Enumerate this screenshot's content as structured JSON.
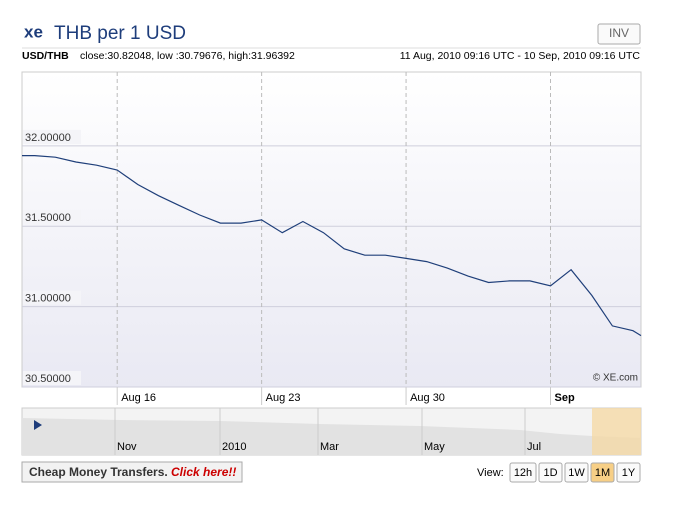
{
  "header": {
    "logo": "xe",
    "title": "THB per 1 USD",
    "button": "INV",
    "pair": "USD/THB",
    "stats": "close:30.82048, low :30.79676, high:31.96392",
    "range": "11 Aug, 2010 09:16 UTC - 10 Sep, 2010 09:16 UTC"
  },
  "chart_data": {
    "type": "line",
    "watermark": "© XE.com",
    "color": "#1f3f7a",
    "grid": true,
    "x": [
      "2010-08-11T09:16",
      "2010-08-12",
      "2010-08-13",
      "2010-08-14",
      "2010-08-15",
      "2010-08-16",
      "2010-08-17",
      "2010-08-18",
      "2010-08-19",
      "2010-08-20",
      "2010-08-21",
      "2010-08-22",
      "2010-08-23",
      "2010-08-24",
      "2010-08-25",
      "2010-08-26",
      "2010-08-27",
      "2010-08-28",
      "2010-08-29",
      "2010-08-30",
      "2010-08-31",
      "2010-09-01",
      "2010-09-02",
      "2010-09-03",
      "2010-09-04",
      "2010-09-05",
      "2010-09-06",
      "2010-09-07",
      "2010-09-08",
      "2010-09-09",
      "2010-09-10",
      "2010-09-10T09:16"
    ],
    "values": [
      31.94,
      31.94,
      31.93,
      31.9,
      31.88,
      31.85,
      31.76,
      31.69,
      31.63,
      31.57,
      31.52,
      31.52,
      31.54,
      31.46,
      31.53,
      31.46,
      31.36,
      31.32,
      31.32,
      31.3,
      31.28,
      31.24,
      31.19,
      31.15,
      31.16,
      31.16,
      31.13,
      31.23,
      31.07,
      30.88,
      30.85,
      30.82
    ],
    "xlim": [
      "2010-08-11T09:16",
      "2010-09-10T09:16"
    ],
    "xticks": [
      {
        "value": "2010-08-16",
        "label": "Aug 16"
      },
      {
        "value": "2010-08-23",
        "label": "Aug 23"
      },
      {
        "value": "2010-08-30",
        "label": "Aug 30"
      },
      {
        "value": "2010-09-06",
        "label": "Sep"
      }
    ],
    "ylim": [
      30.5,
      32.46
    ],
    "yticks": [
      {
        "value": 30.5,
        "label": "30.50000"
      },
      {
        "value": 31,
        "label": "31.00000"
      },
      {
        "value": 31.5,
        "label": "31.50000"
      },
      {
        "value": 32,
        "label": "32.00000"
      }
    ]
  },
  "navigator": {
    "labels": [
      "Nov",
      "2010",
      "Mar",
      "May",
      "Jul"
    ]
  },
  "footer": {
    "promo": "Cheap Money Transfers.",
    "link": "Click here!!",
    "view": "View:",
    "ranges": [
      "12h",
      "1D",
      "1W",
      "1M",
      "1Y"
    ],
    "selected": "1M"
  }
}
